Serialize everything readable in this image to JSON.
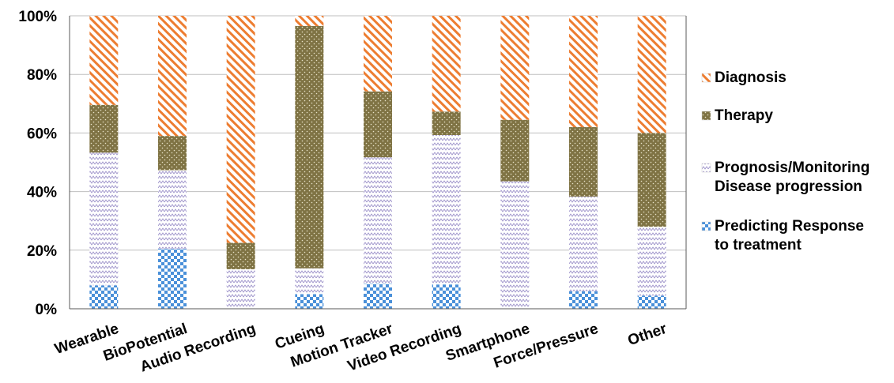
{
  "chart_data": {
    "type": "bar",
    "stacked": "percent",
    "categories": [
      "Wearable",
      "BioPotential",
      "Audio Recording",
      "Cueing",
      "Motion Tracker",
      "Video Recording",
      "Smartphone",
      "Force/Pressure",
      "Other"
    ],
    "series": [
      {
        "name": "Predicting Response to treatment",
        "name_lines": [
          "Predicting Response",
          "to treatment"
        ],
        "color": "#4A90D9",
        "pattern": "checker",
        "values": [
          8,
          20.5,
          0,
          5,
          8.5,
          8.3,
          0,
          6,
          4.5
        ]
      },
      {
        "name": "Prognosis/Monitoring Disease progression",
        "name_lines": [
          "Prognosis/Monitoring",
          "Disease progression"
        ],
        "color": "#9A8FC8",
        "pattern": "zigzag",
        "values": [
          45.3,
          26.8,
          13.5,
          8.8,
          43.2,
          51,
          43.5,
          32.3,
          23.5
        ]
      },
      {
        "name": "Therapy",
        "name_lines": [
          "Therapy"
        ],
        "color": "#7F7344",
        "pattern": "dotted",
        "values": [
          16.3,
          11.7,
          9,
          82.7,
          22.5,
          8,
          21,
          23.7,
          32
        ]
      },
      {
        "name": "Diagnosis",
        "name_lines": [
          "Diagnosis"
        ],
        "color": "#ED7D31",
        "pattern": "diagonal",
        "values": [
          30.4,
          41,
          77.5,
          3.5,
          25.8,
          32.7,
          35.5,
          38,
          40
        ]
      }
    ],
    "ylim": [
      0,
      100
    ],
    "yticks": [
      "0%",
      "20%",
      "40%",
      "60%",
      "80%",
      "100%"
    ],
    "grid": true,
    "legend_position": "right"
  }
}
